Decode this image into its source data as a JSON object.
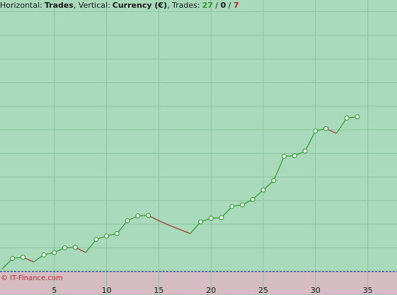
{
  "header": {
    "horizontal_label": "Horizontal:",
    "horizontal_value": "Trades",
    "vertical_label": ", Vertical:",
    "vertical_value": "Currency (€)",
    "trades_label": ", Trades:",
    "wins": "27",
    "sep1": " / ",
    "even": "0",
    "sep2": " / ",
    "losses": "7"
  },
  "watermark": "© IT-Finance.com",
  "colors": {
    "plot_bg": "#a8dabb",
    "loss_zone": "#d6bcc3",
    "grid": "#8fc4a2",
    "win_line": "#2a9a2a",
    "loss_line": "#a0302a",
    "point_fill": "#eaf6ea",
    "baseline_dash": "#3050a8",
    "wins_color": "#2a9a2a",
    "losses_color": "#b02a2a"
  },
  "chart_data": {
    "type": "line",
    "title": "",
    "xlabel": "Trades",
    "ylabel": "Currency (€)",
    "xlim": [
      -0.2,
      37.8
    ],
    "ylim": [
      -1.0,
      11.5
    ],
    "x_ticks": [
      5,
      10,
      15,
      20,
      25,
      30,
      35
    ],
    "grid": true,
    "baseline_y": 0,
    "x": [
      0,
      1,
      2,
      3,
      4,
      5,
      6,
      7,
      8,
      9,
      10,
      11,
      12,
      13,
      14,
      15,
      16,
      17,
      18,
      19,
      20,
      21,
      22,
      23,
      24,
      25,
      26,
      27,
      28,
      29,
      30,
      31,
      32,
      33,
      34
    ],
    "values": [
      0.1,
      0.55,
      0.6,
      0.4,
      0.7,
      0.8,
      1.0,
      1.02,
      0.8,
      1.35,
      1.5,
      1.6,
      2.15,
      2.35,
      2.37,
      2.15,
      1.95,
      1.78,
      1.6,
      2.1,
      2.25,
      2.28,
      2.75,
      2.82,
      3.05,
      3.45,
      3.85,
      4.88,
      4.9,
      5.1,
      5.95,
      6.05,
      5.85,
      6.5,
      6.55
    ]
  }
}
